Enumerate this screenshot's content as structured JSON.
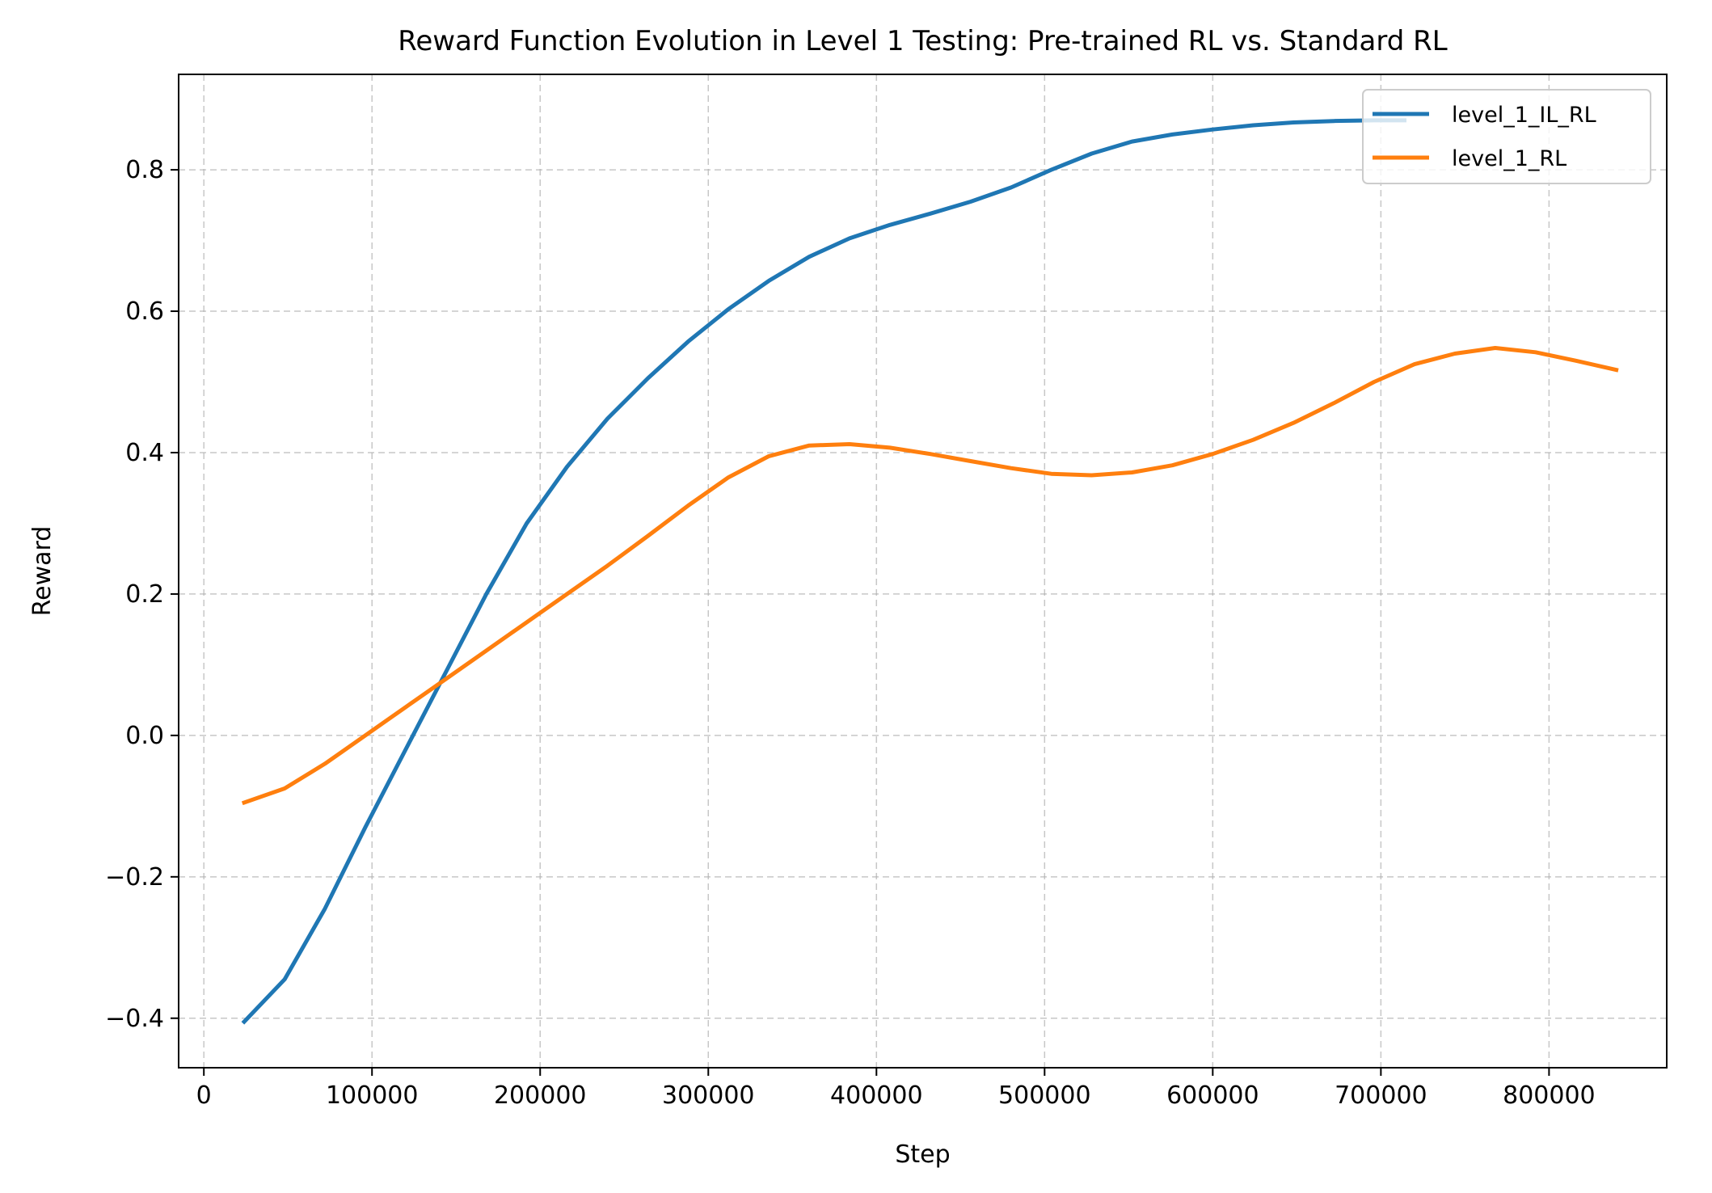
{
  "chart_data": {
    "type": "line",
    "title": "Reward Function Evolution in Level 1 Testing: Pre-trained RL vs. Standard RL",
    "xlabel": "Step",
    "ylabel": "Reward",
    "xlim": [
      -15000,
      870000
    ],
    "ylim": [
      -0.47,
      0.935
    ],
    "xticks": [
      0,
      100000,
      200000,
      300000,
      400000,
      500000,
      600000,
      700000,
      800000
    ],
    "xtick_labels": [
      "0",
      "100000",
      "200000",
      "300000",
      "400000",
      "500000",
      "600000",
      "700000",
      "800000"
    ],
    "yticks": [
      -0.4,
      -0.2,
      0.0,
      0.2,
      0.4,
      0.6,
      0.8
    ],
    "ytick_labels": [
      "−0.4",
      "−0.2",
      "0.0",
      "0.2",
      "0.4",
      "0.6",
      "0.8"
    ],
    "grid": true,
    "legend_position": "upper right",
    "series": [
      {
        "name": "level_1_IL_RL",
        "color": "#1f77b4",
        "x": [
          24000,
          48000,
          72000,
          96000,
          120000,
          144000,
          168000,
          192000,
          216000,
          240000,
          264000,
          288000,
          312000,
          336000,
          360000,
          384000,
          408000,
          432000,
          456000,
          480000,
          504000,
          528000,
          552000,
          576000,
          600000,
          624000,
          648000,
          672000,
          696000,
          714000
        ],
        "y": [
          -0.405,
          -0.345,
          -0.245,
          -0.13,
          -0.02,
          0.09,
          0.2,
          0.3,
          0.38,
          0.448,
          0.505,
          0.557,
          0.603,
          0.643,
          0.677,
          0.703,
          0.722,
          0.738,
          0.755,
          0.775,
          0.8,
          0.823,
          0.84,
          0.85,
          0.857,
          0.863,
          0.867,
          0.869,
          0.87,
          0.87
        ]
      },
      {
        "name": "level_1_RL",
        "color": "#ff7f0e",
        "x": [
          24000,
          48000,
          72000,
          96000,
          120000,
          144000,
          168000,
          192000,
          216000,
          240000,
          264000,
          288000,
          312000,
          336000,
          360000,
          384000,
          408000,
          432000,
          456000,
          480000,
          504000,
          528000,
          552000,
          576000,
          600000,
          624000,
          648000,
          672000,
          696000,
          720000,
          744000,
          768000,
          792000,
          816000,
          840000
        ],
        "y": [
          -0.095,
          -0.075,
          -0.04,
          0.0,
          0.04,
          0.08,
          0.12,
          0.16,
          0.2,
          0.24,
          0.282,
          0.325,
          0.365,
          0.395,
          0.41,
          0.412,
          0.407,
          0.398,
          0.388,
          0.378,
          0.37,
          0.368,
          0.372,
          0.382,
          0.398,
          0.418,
          0.442,
          0.47,
          0.5,
          0.525,
          0.54,
          0.548,
          0.542,
          0.53,
          0.517
        ]
      }
    ]
  }
}
